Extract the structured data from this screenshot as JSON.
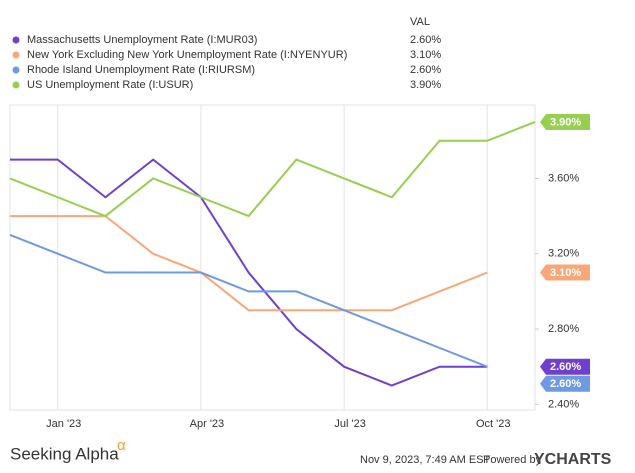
{
  "chart_data": {
    "type": "line",
    "value_header": "VAL",
    "categories": [
      null,
      "Jan '23",
      null,
      null,
      "Apr '23",
      null,
      null,
      "Jul '23",
      null,
      null,
      "Oct '23",
      null
    ],
    "series": [
      {
        "name": "Massachusetts Unemployment Rate (I:MUR03)",
        "color": "#6f3fd0",
        "latest": "2.60%",
        "values": [
          3.7,
          3.7,
          3.5,
          3.7,
          3.5,
          3.1,
          2.8,
          2.6,
          2.5,
          2.6,
          2.6,
          null
        ]
      },
      {
        "name": "New York Excluding New York Unemployment Rate (I:NYENYUR)",
        "color": "#f8a878",
        "latest": "3.10%",
        "values": [
          3.4,
          3.4,
          3.4,
          3.2,
          3.1,
          2.9,
          2.9,
          2.9,
          2.9,
          3.0,
          3.1,
          null
        ]
      },
      {
        "name": "Rhode Island Unemployment Rate (I:RIURSM)",
        "color": "#6d9ae0",
        "latest": "2.60%",
        "values": [
          3.3,
          3.2,
          3.1,
          3.1,
          3.1,
          3.0,
          3.0,
          2.9,
          2.8,
          2.7,
          2.6,
          null
        ]
      },
      {
        "name": "US Unemployment Rate (I:USUR)",
        "color": "#97cf4f",
        "latest": "3.90%",
        "values": [
          3.6,
          3.5,
          3.4,
          3.6,
          3.5,
          3.4,
          3.7,
          3.6,
          3.5,
          3.8,
          3.8,
          3.9
        ]
      }
    ],
    "ylim": [
      2.37,
      3.99
    ],
    "yticks": [
      {
        "value": 2.4,
        "label": "2.40%"
      },
      {
        "value": 2.8,
        "label": "2.80%"
      },
      {
        "value": 3.2,
        "label": "3.20%"
      },
      {
        "value": 3.6,
        "label": "3.60%"
      }
    ],
    "grid": true,
    "legend_position": "top-left"
  },
  "footer": {
    "logo": "Seeking Alpha",
    "logo_mark": "α",
    "timestamp": "Nov 9, 2023, 7:49 AM EST",
    "powered_by": "Powered by",
    "brand": "YCHARTS"
  }
}
